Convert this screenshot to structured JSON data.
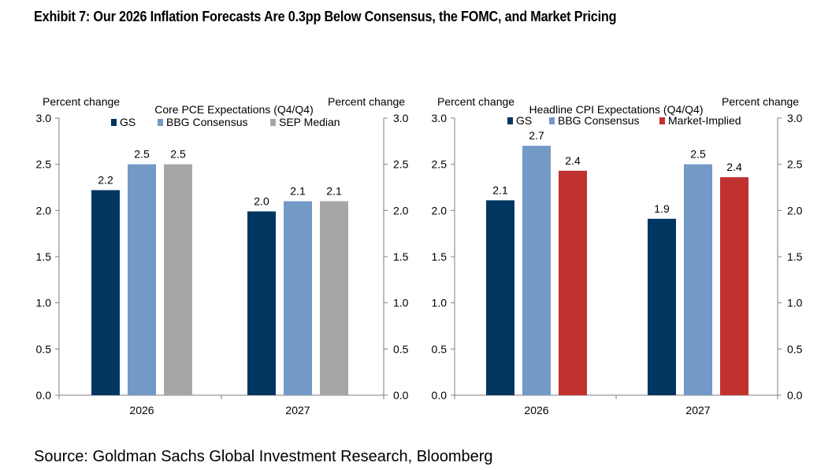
{
  "title": "Exhibit 7: Our 2026 Inflation Forecasts Are 0.3pp Below Consensus, the FOMC, and Market Pricing",
  "source": "Source: Goldman Sachs Global Investment Research, Bloomberg",
  "colors": {
    "gs": "#003660",
    "bbg": "#7399c6",
    "sep": "#a6a6a6",
    "market": "#c0312f",
    "axis": "#7f7f7f"
  },
  "chart_data": [
    {
      "type": "bar",
      "title": "Core PCE Expectations (Q4/Q4)",
      "ylabel_left": "Percent change",
      "ylabel_right": "Percent change",
      "ylim": [
        0.0,
        3.0
      ],
      "yticks": [
        "0.0",
        "0.5",
        "1.0",
        "1.5",
        "2.0",
        "2.5",
        "3.0"
      ],
      "categories": [
        "2026",
        "2027"
      ],
      "series": [
        {
          "name": "GS",
          "color": "#003660",
          "values": [
            2.22,
            1.99
          ],
          "labels": [
            "2.2",
            "2.0"
          ]
        },
        {
          "name": "BBG Consensus",
          "color": "#7399c6",
          "values": [
            2.5,
            2.1
          ],
          "labels": [
            "2.5",
            "2.1"
          ]
        },
        {
          "name": "SEP Median",
          "color": "#a6a6a6",
          "values": [
            2.5,
            2.1
          ],
          "labels": [
            "2.5",
            "2.1"
          ]
        }
      ]
    },
    {
      "type": "bar",
      "title": "Headline CPI Expectations (Q4/Q4)",
      "ylabel_left": "Percent change",
      "ylabel_right": "Percent change",
      "ylim": [
        0.0,
        3.0
      ],
      "yticks": [
        "0.0",
        "0.5",
        "1.0",
        "1.5",
        "2.0",
        "2.5",
        "3.0"
      ],
      "categories": [
        "2026",
        "2027"
      ],
      "series": [
        {
          "name": "GS",
          "color": "#003660",
          "values": [
            2.11,
            1.91
          ],
          "labels": [
            "2.1",
            "1.9"
          ]
        },
        {
          "name": "BBG Consensus",
          "color": "#7399c6",
          "values": [
            2.7,
            2.5
          ],
          "labels": [
            "2.7",
            "2.5"
          ]
        },
        {
          "name": "Market-Implied",
          "color": "#c0312f",
          "values": [
            2.43,
            2.36
          ],
          "labels": [
            "2.4",
            "2.4"
          ]
        }
      ]
    }
  ]
}
